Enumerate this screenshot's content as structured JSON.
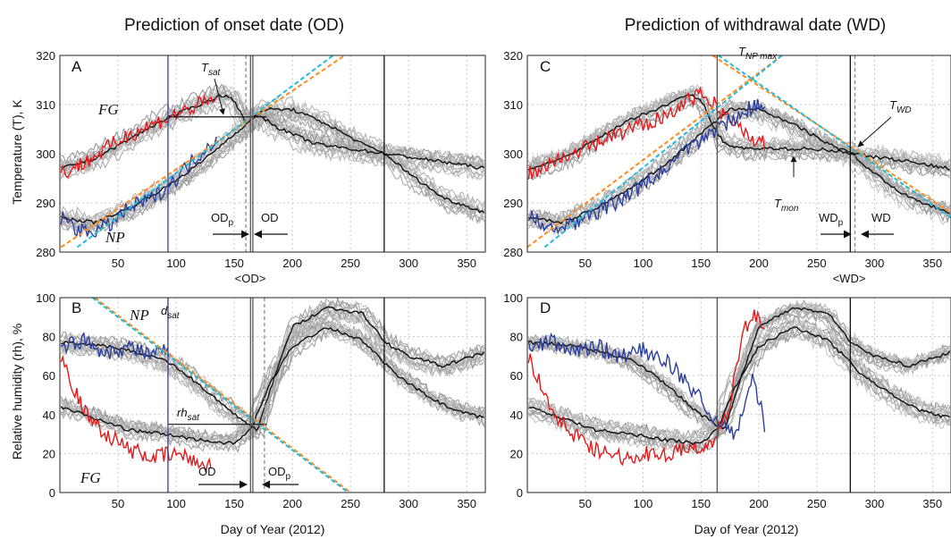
{
  "chart_data": [
    {
      "type": "line",
      "panel_label": "A",
      "title": "Prediction of onset date (OD)",
      "ylabel": "Temperature (T), K",
      "xlim": [
        0,
        366
      ],
      "ylim": [
        280,
        320
      ],
      "xticks": [
        50,
        100,
        150,
        200,
        250,
        300,
        350
      ],
      "yticks": [
        280,
        290,
        300,
        310,
        320
      ],
      "grid": true,
      "series": [
        {
          "role": "FG-mean",
          "color": "#111111",
          "x": [
            1,
            30,
            60,
            90,
            120,
            140,
            150,
            160,
            170,
            190,
            220,
            250,
            280,
            310,
            340,
            366
          ],
          "y": [
            297,
            299,
            303,
            307,
            310,
            312,
            311,
            306,
            308,
            305,
            302,
            301,
            300,
            299,
            298,
            297
          ]
        },
        {
          "role": "NP-mean",
          "color": "#111111",
          "x": [
            1,
            30,
            60,
            90,
            120,
            150,
            165,
            175,
            200,
            230,
            260,
            280,
            300,
            330,
            366
          ],
          "y": [
            287,
            286,
            289,
            293,
            298,
            304,
            307,
            309,
            309,
            306,
            302,
            300,
            296,
            291,
            288
          ]
        },
        {
          "role": "FG-2012",
          "color": "#e31a1c",
          "x": [
            1,
            20,
            40,
            60,
            80,
            100,
            120,
            135
          ],
          "y": [
            296,
            298,
            301,
            304,
            306,
            308,
            310,
            311
          ]
        },
        {
          "role": "NP-2012",
          "color": "#2b3f9e",
          "x": [
            1,
            20,
            40,
            60,
            80,
            100,
            120,
            135
          ],
          "y": [
            287,
            284,
            285,
            289,
            291,
            295,
            300,
            303
          ]
        }
      ],
      "fit_lines": [
        {
          "color": "#ff8c1a",
          "x": [
            1,
            245
          ],
          "y": [
            281,
            320
          ]
        },
        {
          "color": "#22bbdd",
          "x": [
            15,
            235
          ],
          "y": [
            281,
            320
          ]
        }
      ],
      "vlines": [
        {
          "x": 93,
          "color": "#2b3f9e"
        },
        {
          "x": 160,
          "color": "#888888",
          "dashed": true
        },
        {
          "x": 164,
          "color": "#555555"
        },
        {
          "x": 166,
          "color": "#555555"
        },
        {
          "x": 279,
          "color": "#111111"
        }
      ],
      "hline": {
        "y": 307.5,
        "x": [
          93,
          178
        ]
      },
      "annotations": {
        "tsat": "T",
        "tsat_sub": "sat",
        "fg": "FG",
        "np": "NP",
        "odp": "OD",
        "odp_sub": "p",
        "od": "OD",
        "mean_od": "<OD>"
      }
    },
    {
      "type": "line",
      "panel_label": "B",
      "ylabel": "Relative humidity (rh), %",
      "xlabel": "Day of Year (2012)",
      "xlim": [
        0,
        366
      ],
      "ylim": [
        0,
        100
      ],
      "xticks": [
        50,
        100,
        150,
        200,
        250,
        300,
        350
      ],
      "yticks": [
        0,
        20,
        40,
        60,
        80,
        100
      ],
      "grid": true,
      "series": [
        {
          "role": "NP-mean",
          "color": "#111111",
          "x": [
            1,
            30,
            60,
            90,
            110,
            130,
            150,
            170,
            185,
            200,
            230,
            260,
            280,
            300,
            330,
            366
          ],
          "y": [
            77,
            76,
            73,
            68,
            60,
            50,
            40,
            32,
            60,
            85,
            95,
            92,
            77,
            70,
            65,
            72
          ]
        },
        {
          "role": "FG-mean",
          "color": "#111111",
          "x": [
            1,
            30,
            60,
            90,
            120,
            150,
            165,
            180,
            200,
            230,
            260,
            290,
            320,
            340,
            366
          ],
          "y": [
            44,
            38,
            32,
            30,
            27,
            25,
            33,
            55,
            75,
            85,
            78,
            60,
            48,
            42,
            38
          ]
        },
        {
          "role": "FG-2012",
          "color": "#e31a1c",
          "x": [
            1,
            20,
            40,
            60,
            80,
            100,
            120,
            130
          ],
          "y": [
            70,
            42,
            30,
            22,
            18,
            20,
            15,
            14
          ]
        },
        {
          "role": "NP-2012",
          "color": "#2b3f9e",
          "x": [
            1,
            20,
            40,
            60,
            80,
            93
          ],
          "y": [
            75,
            78,
            72,
            75,
            70,
            73
          ]
        }
      ],
      "fit_lines": [
        {
          "color": "#ff8c1a",
          "x": [
            30,
            250
          ],
          "y": [
            100,
            0
          ]
        },
        {
          "color": "#22bbdd",
          "x": [
            28,
            248
          ],
          "y": [
            100,
            0
          ]
        }
      ],
      "vlines": [
        {
          "x": 93,
          "color": "#2b3f9e"
        },
        {
          "x": 164,
          "color": "#555555"
        },
        {
          "x": 166,
          "color": "#555555"
        },
        {
          "x": 176,
          "color": "#888888",
          "dashed": true
        },
        {
          "x": 279,
          "color": "#111111"
        }
      ],
      "hline": {
        "y": 35,
        "x": [
          93,
          178
        ]
      },
      "annotations": {
        "dsat": "d",
        "dsat_sub": "sat",
        "rhsat": "rh",
        "rhsat_sub": "sat",
        "fg": "FG",
        "np": "NP",
        "od": "OD",
        "odp": "OD",
        "odp_sub": "p"
      }
    },
    {
      "type": "line",
      "panel_label": "C",
      "title": "Prediction of withdrawal date (WD)",
      "xlim": [
        0,
        366
      ],
      "ylim": [
        280,
        320
      ],
      "xticks": [
        50,
        100,
        150,
        200,
        250,
        300,
        350
      ],
      "yticks": [
        280,
        290,
        300,
        310,
        320
      ],
      "grid": true,
      "series": [
        {
          "role": "FG-mean",
          "color": "#111111",
          "x": [
            1,
            30,
            60,
            90,
            120,
            140,
            150,
            160,
            170,
            190,
            220,
            250,
            280,
            310,
            340,
            366
          ],
          "y": [
            297,
            299,
            303,
            307,
            310,
            312,
            311,
            306,
            302,
            301,
            301,
            301,
            300,
            299,
            298,
            297
          ]
        },
        {
          "role": "NP-mean",
          "color": "#111111",
          "x": [
            1,
            30,
            60,
            90,
            120,
            150,
            165,
            175,
            200,
            230,
            260,
            280,
            300,
            330,
            366
          ],
          "y": [
            287,
            286,
            289,
            293,
            298,
            304,
            307,
            309,
            309,
            306,
            302,
            300,
            296,
            291,
            288
          ]
        },
        {
          "role": "FG-2012",
          "color": "#e31a1c",
          "x": [
            1,
            30,
            60,
            90,
            120,
            140,
            155,
            170,
            190,
            205
          ],
          "y": [
            296,
            299,
            302,
            305,
            308,
            311,
            312,
            308,
            304,
            302
          ]
        },
        {
          "role": "NP-2012",
          "color": "#2b3f9e",
          "x": [
            1,
            30,
            60,
            90,
            120,
            150,
            170,
            190,
            205
          ],
          "y": [
            287,
            285,
            288,
            292,
            297,
            303,
            306,
            309,
            310
          ]
        }
      ],
      "fit_lines": [
        {
          "color": "#ff8c1a",
          "x": [
            0,
            220
          ],
          "y": [
            281,
            320
          ]
        },
        {
          "color": "#22bbdd",
          "x": [
            15,
            220
          ],
          "y": [
            281,
            320
          ]
        },
        {
          "color": "#ff8c1a",
          "x": [
            160,
            366
          ],
          "y": [
            320,
            288
          ]
        },
        {
          "color": "#22bbdd",
          "x": [
            165,
            366
          ],
          "y": [
            320,
            287
          ]
        }
      ],
      "vlines": [
        {
          "x": 164,
          "color": "#555555"
        },
        {
          "x": 279,
          "color": "#111111"
        },
        {
          "x": 283,
          "color": "#888888",
          "dashed": true
        }
      ],
      "annotations": {
        "tnp": "T",
        "tnp_sub": "NP max",
        "twd": "T",
        "twd_sub": "WD",
        "tmon": "T",
        "tmon_sub": "mon",
        "wdp": "WD",
        "wdp_sub": "p",
        "wd": "WD",
        "mean_wd": "<WD>"
      }
    },
    {
      "type": "line",
      "panel_label": "D",
      "xlabel": "Day of Year (2012)",
      "xlim": [
        0,
        366
      ],
      "ylim": [
        0,
        100
      ],
      "xticks": [
        50,
        100,
        150,
        200,
        250,
        300,
        350
      ],
      "yticks": [
        0,
        20,
        40,
        60,
        80,
        100
      ],
      "grid": true,
      "series": [
        {
          "role": "NP-mean",
          "color": "#111111",
          "x": [
            1,
            30,
            60,
            90,
            110,
            130,
            150,
            170,
            185,
            200,
            230,
            260,
            280,
            300,
            330,
            366
          ],
          "y": [
            77,
            76,
            73,
            68,
            60,
            50,
            40,
            32,
            60,
            85,
            95,
            92,
            77,
            70,
            65,
            72
          ]
        },
        {
          "role": "FG-mean",
          "color": "#111111",
          "x": [
            1,
            30,
            60,
            90,
            120,
            150,
            165,
            180,
            200,
            230,
            260,
            290,
            320,
            340,
            366
          ],
          "y": [
            44,
            38,
            32,
            30,
            27,
            25,
            33,
            55,
            75,
            85,
            78,
            60,
            48,
            42,
            38
          ]
        },
        {
          "role": "FG-2012",
          "color": "#e31a1c",
          "x": [
            1,
            20,
            40,
            60,
            80,
            100,
            120,
            140,
            160,
            175,
            185,
            195,
            205
          ],
          "y": [
            70,
            42,
            30,
            22,
            18,
            20,
            20,
            22,
            25,
            45,
            80,
            92,
            85
          ]
        },
        {
          "role": "NP-2012",
          "color": "#2b3f9e",
          "x": [
            1,
            20,
            40,
            60,
            80,
            100,
            120,
            140,
            160,
            180,
            195,
            205
          ],
          "y": [
            75,
            78,
            72,
            75,
            70,
            73,
            68,
            55,
            40,
            30,
            60,
            35
          ]
        }
      ],
      "vlines": [
        {
          "x": 164,
          "color": "#555555"
        },
        {
          "x": 279,
          "color": "#111111"
        }
      ]
    }
  ]
}
